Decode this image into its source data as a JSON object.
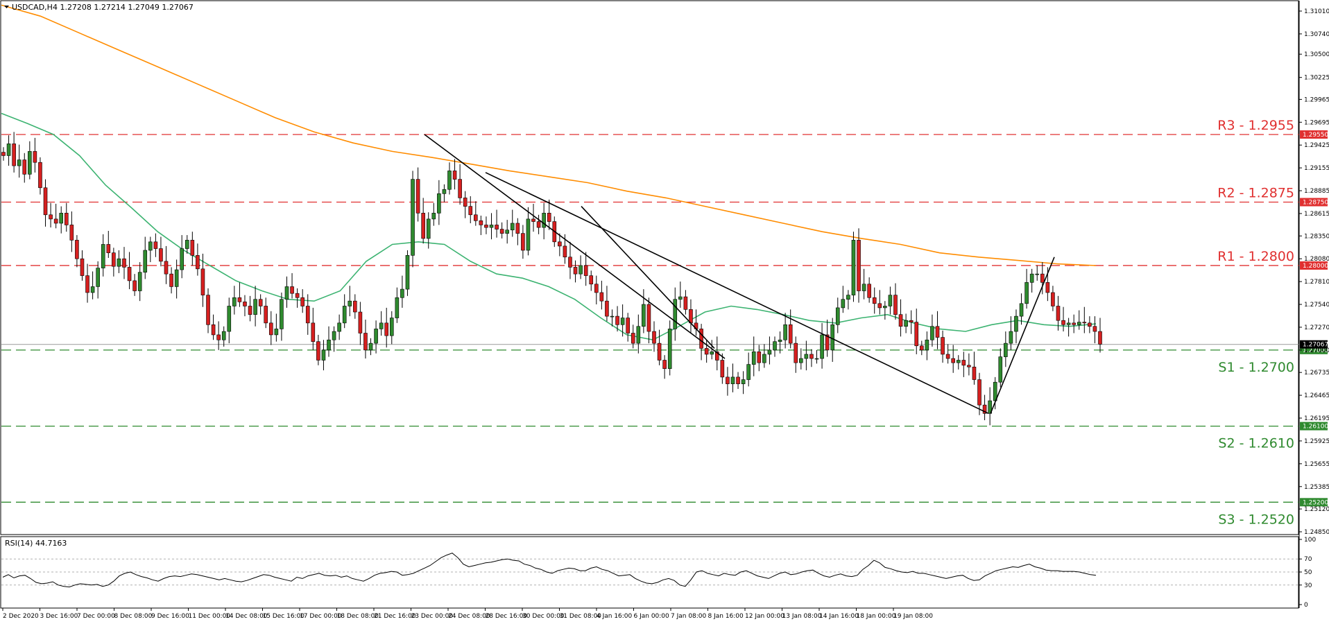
{
  "header": {
    "symbol_label": "USDCAD,H4  1.27208 1.27214 1.27049 1.27067"
  },
  "rsi_header": {
    "label": "RSI(14) 44.7163"
  },
  "colors": {
    "bull": "#2f8a2f",
    "bear": "#d62020",
    "ma_fast": "#3cb371",
    "ma_slow": "#ff8c00",
    "resistance": "#e03030",
    "support": "#2f8a2f",
    "trendline": "#000000"
  },
  "chart_data": [
    {
      "type": "candlestick",
      "symbol": "USDCAD",
      "timeframe": "H4",
      "ohlc": {
        "open": 1.27208,
        "high": 1.27214,
        "low": 1.27049,
        "close": 1.27067
      },
      "ylim": [
        1.2485,
        1.311
      ],
      "y_ticks": [
        "1.31010",
        "1.30740",
        "1.30500",
        "1.30225",
        "1.29965",
        "1.29695",
        "1.29425",
        "1.29155",
        "1.28885",
        "1.28615",
        "1.28350",
        "1.28080",
        "1.27810",
        "1.27540",
        "1.27270",
        "1.27000",
        "1.26735",
        "1.26465",
        "1.26195",
        "1.25925",
        "1.25655",
        "1.25385",
        "1.25120",
        "1.24850"
      ],
      "x_labels": [
        "2 Dec 2020",
        "3 Dec 16:00",
        "7 Dec 00:00",
        "8 Dec 08:00",
        "9 Dec 16:00",
        "11 Dec 00:00",
        "14 Dec 08:00",
        "15 Dec 16:00",
        "17 Dec 00:00",
        "18 Dec 08:00",
        "21 Dec 16:00",
        "23 Dec 00:00",
        "24 Dec 08:00",
        "28 Dec 16:00",
        "30 Dec 00:00",
        "31 Dec 08:00",
        "4 Jan 16:00",
        "6 Jan 00:00",
        "7 Jan 08:00",
        "8 Jan 16:00",
        "12 Jan 00:00",
        "13 Jan 08:00",
        "14 Jan 16:00",
        "18 Jan 00:00",
        "19 Jan 08:00"
      ],
      "current_price_tag": "1.27067",
      "levels": [
        {
          "label": "R3 - 1.2955",
          "tag": "1.29550",
          "value": 1.2955,
          "kind": "resistance"
        },
        {
          "label": "R2 - 1.2875",
          "tag": "1.28750",
          "value": 1.2875,
          "kind": "resistance"
        },
        {
          "label": "R1 - 1.2800",
          "tag": "1.28000",
          "value": 1.28,
          "kind": "resistance"
        },
        {
          "label": "S1 - 1.2700",
          "tag": "1.27000",
          "value": 1.27,
          "kind": "support"
        },
        {
          "label": "S2 - 1.2610",
          "tag": "1.26100",
          "value": 1.261,
          "kind": "support"
        },
        {
          "label": "S3 - 1.2520",
          "tag": "1.25200",
          "value": 1.252,
          "kind": "support"
        }
      ],
      "closes": [
        1.293,
        1.2944,
        1.2918,
        1.2925,
        1.2908,
        1.2935,
        1.2922,
        1.2892,
        1.286,
        1.2855,
        1.285,
        1.2862,
        1.2848,
        1.283,
        1.2808,
        1.2788,
        1.2768,
        1.2775,
        1.2797,
        1.2825,
        1.2815,
        1.2799,
        1.2808,
        1.2798,
        1.2782,
        1.277,
        1.2792,
        1.2818,
        1.2828,
        1.282,
        1.2805,
        1.279,
        1.2775,
        1.2795,
        1.282,
        1.283,
        1.2812,
        1.2796,
        1.2765,
        1.273,
        1.2718,
        1.2712,
        1.2722,
        1.2752,
        1.2762,
        1.2757,
        1.2752,
        1.2742,
        1.276,
        1.2752,
        1.2732,
        1.2718,
        1.2725,
        1.276,
        1.2775,
        1.2767,
        1.2762,
        1.2752,
        1.2732,
        1.271,
        1.2688,
        1.27,
        1.2712,
        1.2722,
        1.2732,
        1.2752,
        1.2758,
        1.2745,
        1.272,
        1.27,
        1.2708,
        1.2725,
        1.2732,
        1.2717,
        1.2738,
        1.2762,
        1.2772,
        1.2812,
        1.2902,
        1.2862,
        1.2832,
        1.2855,
        1.2862,
        1.2885,
        1.289,
        1.2912,
        1.2902,
        1.288,
        1.287,
        1.286,
        1.2853,
        1.2848,
        1.2845,
        1.2848,
        1.2843,
        1.2838,
        1.2842,
        1.285,
        1.2838,
        1.2818,
        1.2855,
        1.2852,
        1.2845,
        1.2862,
        1.2852,
        1.2828,
        1.2823,
        1.281,
        1.2798,
        1.279,
        1.28,
        1.2788,
        1.2778,
        1.2768,
        1.2758,
        1.274,
        1.274,
        1.273,
        1.2738,
        1.272,
        1.2708,
        1.2728,
        1.2754,
        1.2722,
        1.2708,
        1.2688,
        1.2678,
        1.2725,
        1.276,
        1.2763,
        1.2748,
        1.2732,
        1.2725,
        1.2702,
        1.2695,
        1.2698,
        1.2688,
        1.2668,
        1.266,
        1.2668,
        1.266,
        1.2665,
        1.2683,
        1.2698,
        1.2685,
        1.2695,
        1.27,
        1.271,
        1.2712,
        1.273,
        1.2708,
        1.2685,
        1.269,
        1.2695,
        1.269,
        1.269,
        1.2718,
        1.27,
        1.273,
        1.275,
        1.276,
        1.2765,
        1.283,
        1.277,
        1.2778,
        1.2762,
        1.2755,
        1.275,
        1.2752,
        1.2765,
        1.2742,
        1.2728,
        1.2735,
        1.2733,
        1.2705,
        1.27,
        1.2712,
        1.2728,
        1.2715,
        1.2695,
        1.269,
        1.2685,
        1.2688,
        1.2682,
        1.268,
        1.2665,
        1.2635,
        1.2625,
        1.264,
        1.2662,
        1.2692,
        1.2708,
        1.2722,
        1.274,
        1.2755,
        1.278,
        1.279,
        1.279,
        1.278,
        1.2768,
        1.2752,
        1.2735,
        1.273,
        1.2732,
        1.273,
        1.2733,
        1.2732,
        1.2728,
        1.2722,
        1.2707
      ],
      "moving_averages": [
        {
          "period": "fast",
          "start": 1.298,
          "points": [
            1.298,
            1.2968,
            1.2955,
            1.293,
            1.2895,
            1.2868,
            1.284,
            1.2818,
            1.28,
            1.2782,
            1.277,
            1.276,
            1.2758,
            1.277,
            1.2805,
            1.2825,
            1.2828,
            1.2825,
            1.2805,
            1.279,
            1.2785,
            1.2775,
            1.276,
            1.2738,
            1.2718,
            1.2712,
            1.2728,
            1.2745,
            1.2752,
            1.2748,
            1.2742,
            1.2735,
            1.2732,
            1.2738,
            1.2742,
            1.2732,
            1.2725,
            1.2722,
            1.273,
            1.2735,
            1.273,
            1.2728,
            1.2731
          ]
        },
        {
          "period": "slow",
          "start": 1.3108,
          "points": [
            1.3108,
            1.3095,
            1.3075,
            1.3055,
            1.3035,
            1.3015,
            1.2995,
            1.2975,
            1.2958,
            1.2945,
            1.2935,
            1.2928,
            1.292,
            1.2912,
            1.2905,
            1.2898,
            1.2888,
            1.288,
            1.287,
            1.286,
            1.285,
            1.284,
            1.2832,
            1.2825,
            1.2815,
            1.281,
            1.2806,
            1.2802,
            1.28
          ]
        }
      ]
    },
    {
      "type": "line",
      "name": "RSI(14)",
      "ylim": [
        0,
        100
      ],
      "y_ticks": [
        "100",
        "70",
        "50",
        "30",
        "0"
      ],
      "values": [
        42,
        46,
        41,
        44,
        45,
        40,
        34,
        32,
        33,
        35,
        30,
        28,
        27,
        30,
        32,
        31,
        30,
        31,
        28,
        30,
        36,
        44,
        48,
        50,
        46,
        43,
        41,
        38,
        36,
        40,
        43,
        44,
        43,
        45,
        47,
        46,
        44,
        42,
        40,
        38,
        40,
        38,
        36,
        35,
        37,
        40,
        43,
        46,
        45,
        42,
        40,
        38,
        36,
        42,
        40,
        44,
        46,
        48,
        45,
        44,
        45,
        42,
        44,
        40,
        38,
        36,
        40,
        45,
        48,
        49,
        51,
        50,
        45,
        46,
        48,
        52,
        56,
        60,
        66,
        72,
        76,
        79,
        72,
        62,
        58,
        60,
        62,
        64,
        65,
        67,
        69,
        70,
        68,
        67,
        62,
        60,
        56,
        54,
        50,
        48,
        52,
        54,
        56,
        55,
        52,
        52,
        56,
        58,
        54,
        52,
        48,
        44,
        45,
        46,
        40,
        36,
        33,
        32,
        34,
        38,
        40,
        37,
        30,
        28,
        38,
        50,
        52,
        48,
        46,
        44,
        48,
        46,
        45,
        50,
        52,
        48,
        44,
        42,
        40,
        44,
        48,
        50,
        46,
        47,
        50,
        52,
        53,
        48,
        44,
        42,
        45,
        47,
        44,
        43,
        45,
        54,
        60,
        68,
        64,
        57,
        55,
        52,
        50,
        49,
        51,
        48,
        48,
        46,
        44,
        42,
        40,
        42,
        44,
        45,
        40,
        37,
        38,
        44,
        48,
        52,
        54,
        56,
        58,
        57,
        60,
        62,
        58,
        56,
        53,
        52,
        52,
        51,
        51,
        51,
        50,
        48,
        46,
        45
      ]
    }
  ]
}
